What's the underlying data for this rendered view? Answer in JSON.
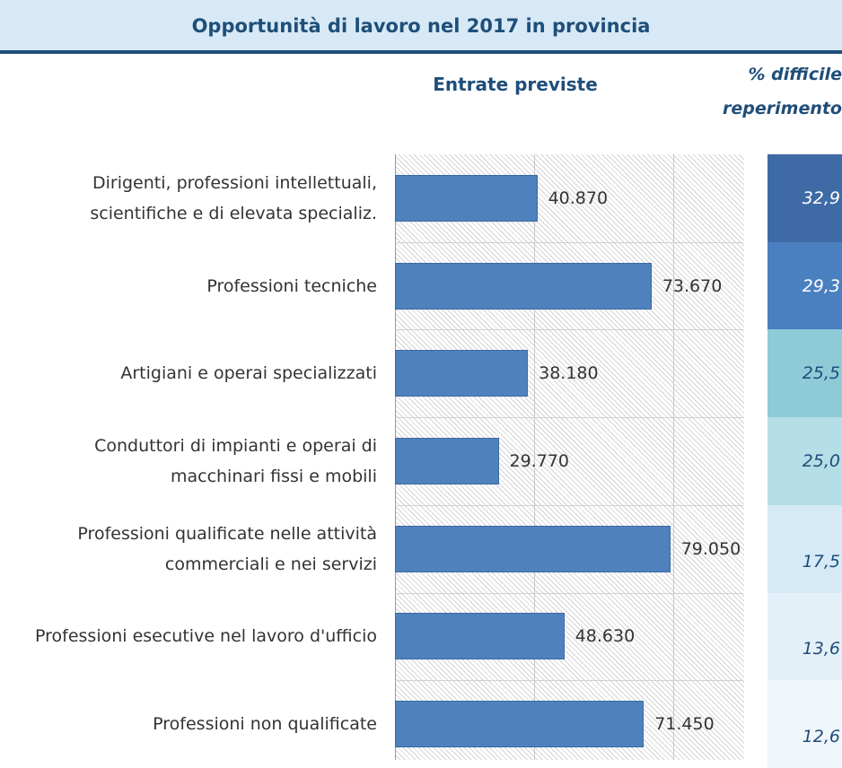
{
  "chart_data": {
    "type": "bar",
    "orientation": "horizontal",
    "title": "Opportunità di lavoro nel 2017 in provincia",
    "xlabel": "Entrate previste",
    "table_label": "% difficile\nreperimento",
    "categories": [
      "Dirigenti, professioni intellettuali, scientifiche e di elevata specializ.",
      "Professioni tecniche",
      "Artigiani e operai specializzati",
      "Conduttori di impianti e operai di macchinari fissi e mobili",
      "Professioni qualificate nelle attività commerciali e nei servizi",
      "Professioni esecutive nel lavoro d'ufficio",
      "Professioni non qualificate"
    ],
    "values": [
      40870,
      73670,
      38180,
      29770,
      79050,
      48630,
      71450
    ],
    "value_labels": [
      "40.870",
      "73.670",
      "38.180",
      "29.770",
      "79.050",
      "48.630",
      "71.450"
    ],
    "color": "#4f81bd",
    "xlim": [
      0,
      100000
    ],
    "xticks": [
      0,
      40000,
      80000
    ],
    "grid": true,
    "table_values": [
      32.9,
      29.3,
      25.5,
      25.0,
      17.5,
      13.6,
      12.6
    ],
    "table_labels": [
      "32,9",
      "29,3",
      "25,5",
      "25,0",
      "17,5",
      "13,6",
      "12,6"
    ],
    "cell_colors": [
      "#3e6aa6",
      "#4a7fc0",
      "#8fcbd7",
      "#b5dee7",
      "#d5eaf6",
      "#e4f0f8",
      "#f0f6fa"
    ]
  }
}
